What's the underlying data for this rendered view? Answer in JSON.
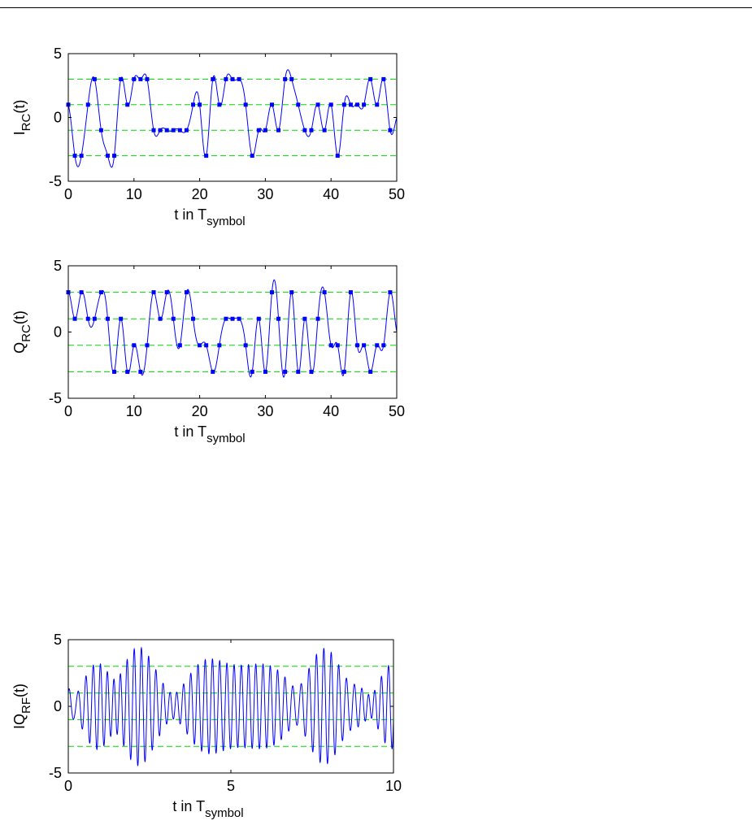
{
  "chart_data": [
    {
      "type": "line",
      "ylabel_main": "I",
      "ylabel_sub": "RC",
      "ylabel_tail": "(t)",
      "xlabel_main": "t in T",
      "xlabel_sub": "symbol",
      "xlim": [
        0,
        50
      ],
      "ylim": [
        -5,
        5
      ],
      "xticks": [
        0,
        10,
        20,
        30,
        40,
        50
      ],
      "yticks": [
        -5,
        0,
        5
      ],
      "reference_levels": [
        3,
        1,
        -1,
        -3
      ],
      "grid": false,
      "symbols": [
        1,
        -3,
        -3,
        1,
        3,
        -1,
        -3,
        -3,
        3,
        1,
        3,
        3,
        3,
        -1,
        -1,
        -1,
        -1,
        -1,
        -1,
        1,
        1,
        -3,
        3,
        1,
        3,
        3,
        3,
        1,
        -3,
        -1,
        -1,
        1,
        -1,
        3,
        3,
        1,
        -1,
        -1,
        1,
        -1,
        1,
        -3,
        1,
        1,
        1,
        1,
        3,
        1,
        3,
        -1
      ],
      "markers": true
    },
    {
      "type": "line",
      "ylabel_main": "Q",
      "ylabel_sub": "RC",
      "ylabel_tail": "(t)",
      "xlabel_main": "t in T",
      "xlabel_sub": "symbol",
      "xlim": [
        0,
        50
      ],
      "ylim": [
        -5,
        5
      ],
      "xticks": [
        0,
        10,
        20,
        30,
        40,
        50
      ],
      "yticks": [
        -5,
        0,
        5
      ],
      "reference_levels": [
        3,
        1,
        -1,
        -3
      ],
      "grid": false,
      "symbols": [
        3,
        1,
        3,
        1,
        1,
        3,
        1,
        -3,
        1,
        -3,
        -1,
        -3,
        -1,
        3,
        1,
        3,
        1,
        -1,
        3,
        1,
        -1,
        -1,
        -3,
        -1,
        1,
        1,
        1,
        -1,
        -3,
        1,
        -3,
        3,
        1,
        -3,
        3,
        -3,
        1,
        -3,
        1,
        3,
        -1,
        -1,
        -3,
        3,
        -1,
        -1,
        -3,
        -1,
        -1,
        3
      ],
      "markers": true
    },
    {
      "type": "line",
      "ylabel_main": "IQ",
      "ylabel_sub": "RF",
      "ylabel_tail": "(t)",
      "xlabel_main": "t in T",
      "xlabel_sub": "symbol",
      "xlim": [
        0,
        10
      ],
      "ylim": [
        -5,
        5
      ],
      "xticks": [
        0,
        5,
        10
      ],
      "yticks": [
        -5,
        0,
        5
      ],
      "reference_levels": [
        3,
        1,
        -1,
        -3
      ],
      "grid": false,
      "carrier_cycles_per_symbol": 4.5,
      "markers": false
    }
  ]
}
